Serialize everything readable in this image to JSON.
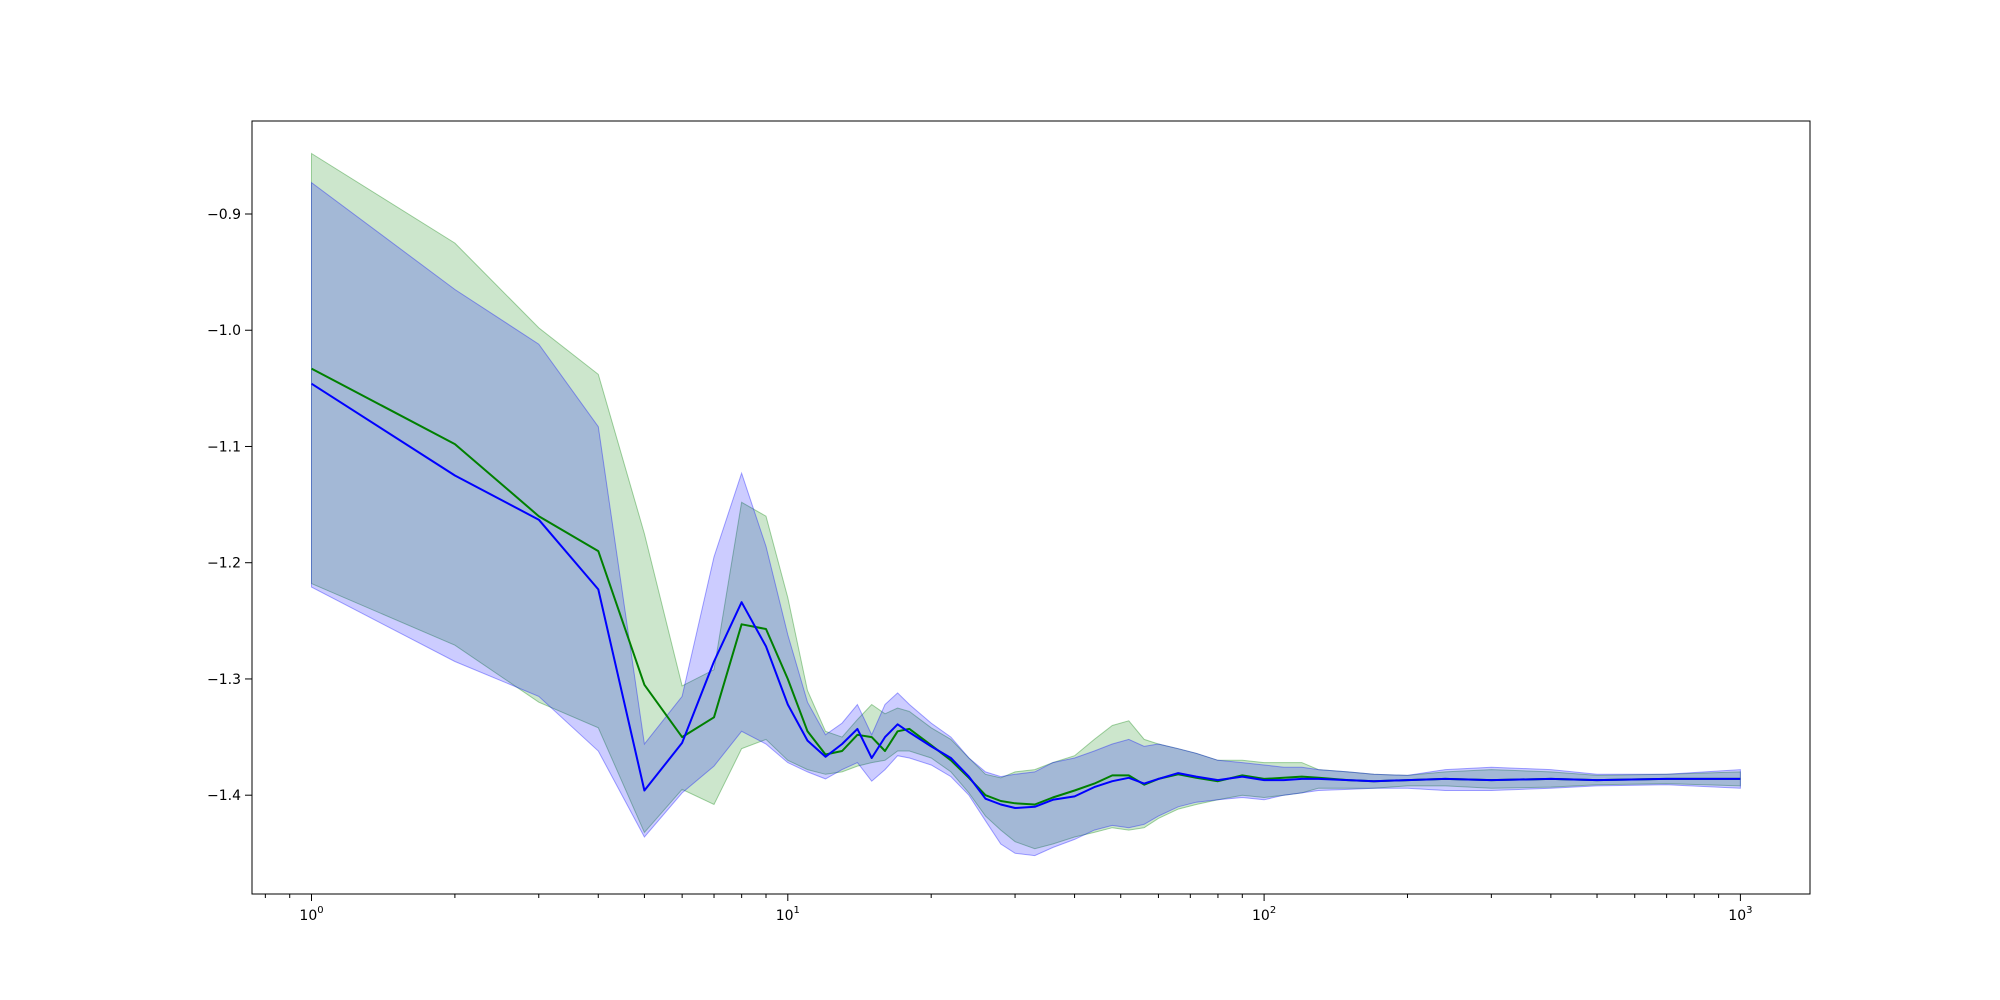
{
  "chart_data": {
    "type": "line",
    "title": "",
    "xlabel": "",
    "ylabel": "",
    "x_scale": "log",
    "xlim": [
      0.75,
      1400
    ],
    "ylim": [
      -1.485,
      -0.82
    ],
    "grid": false,
    "legend": "none",
    "x_ticks": [
      {
        "value": 1,
        "base": "10",
        "exp": "0"
      },
      {
        "value": 10,
        "base": "10",
        "exp": "1"
      },
      {
        "value": 100,
        "base": "10",
        "exp": "2"
      },
      {
        "value": 1000,
        "base": "10",
        "exp": "3"
      }
    ],
    "y_ticks": [
      {
        "value": -0.9,
        "label": "−0.9"
      },
      {
        "value": -1.0,
        "label": "−1.0"
      },
      {
        "value": -1.1,
        "label": "−1.1"
      },
      {
        "value": -1.2,
        "label": "−1.2"
      },
      {
        "value": -1.3,
        "label": "−1.3"
      },
      {
        "value": -1.4,
        "label": "−1.4"
      }
    ],
    "series": [
      {
        "color": "#008000",
        "band_color": "#008000",
        "band_opacity": 0.2,
        "x": [
          1,
          2,
          3,
          4,
          5,
          6,
          7,
          8,
          9,
          10,
          11,
          12,
          13,
          14,
          15,
          16,
          17,
          18,
          20,
          22,
          24,
          26,
          28,
          30,
          33,
          36,
          40,
          44,
          48,
          52,
          56,
          60,
          66,
          72,
          80,
          90,
          100,
          110,
          120,
          130,
          150,
          170,
          200,
          240,
          300,
          400,
          500,
          700,
          1000
        ],
        "mean": [
          -1.033,
          -1.098,
          -1.16,
          -1.19,
          -1.305,
          -1.35,
          -1.333,
          -1.253,
          -1.257,
          -1.3,
          -1.345,
          -1.365,
          -1.362,
          -1.348,
          -1.35,
          -1.362,
          -1.345,
          -1.343,
          -1.357,
          -1.37,
          -1.385,
          -1.4,
          -1.405,
          -1.407,
          -1.408,
          -1.402,
          -1.396,
          -1.39,
          -1.383,
          -1.383,
          -1.391,
          -1.386,
          -1.382,
          -1.385,
          -1.388,
          -1.383,
          -1.386,
          -1.385,
          -1.384,
          -1.385,
          -1.387,
          -1.388,
          -1.387,
          -1.386,
          -1.387,
          -1.386,
          -1.387,
          -1.386,
          -1.386
        ],
        "upper": [
          -0.848,
          -0.925,
          -0.998,
          -1.038,
          -1.175,
          -1.306,
          -1.292,
          -1.148,
          -1.16,
          -1.23,
          -1.31,
          -1.345,
          -1.35,
          -1.335,
          -1.322,
          -1.33,
          -1.325,
          -1.328,
          -1.342,
          -1.352,
          -1.368,
          -1.382,
          -1.385,
          -1.38,
          -1.378,
          -1.372,
          -1.366,
          -1.352,
          -1.34,
          -1.336,
          -1.352,
          -1.356,
          -1.36,
          -1.364,
          -1.37,
          -1.37,
          -1.372,
          -1.372,
          -1.372,
          -1.378,
          -1.38,
          -1.382,
          -1.383,
          -1.38,
          -1.378,
          -1.38,
          -1.383,
          -1.382,
          -1.38
        ],
        "lower": [
          -1.218,
          -1.271,
          -1.32,
          -1.342,
          -1.432,
          -1.395,
          -1.408,
          -1.36,
          -1.352,
          -1.37,
          -1.378,
          -1.382,
          -1.38,
          -1.375,
          -1.372,
          -1.37,
          -1.362,
          -1.362,
          -1.368,
          -1.38,
          -1.398,
          -1.418,
          -1.43,
          -1.44,
          -1.446,
          -1.442,
          -1.436,
          -1.432,
          -1.428,
          -1.43,
          -1.428,
          -1.42,
          -1.412,
          -1.408,
          -1.404,
          -1.4,
          -1.402,
          -1.4,
          -1.398,
          -1.394,
          -1.394,
          -1.394,
          -1.392,
          -1.392,
          -1.394,
          -1.393,
          -1.391,
          -1.39,
          -1.392
        ]
      },
      {
        "color": "#0000ff",
        "band_color": "#0000ff",
        "band_opacity": 0.2,
        "x": [
          1,
          2,
          3,
          4,
          5,
          6,
          7,
          8,
          9,
          10,
          11,
          12,
          13,
          14,
          15,
          16,
          17,
          18,
          20,
          22,
          24,
          26,
          28,
          30,
          33,
          36,
          40,
          44,
          48,
          52,
          56,
          60,
          66,
          72,
          80,
          90,
          100,
          110,
          120,
          130,
          150,
          170,
          200,
          240,
          300,
          400,
          500,
          700,
          1000
        ],
        "mean": [
          -1.046,
          -1.125,
          -1.163,
          -1.223,
          -1.396,
          -1.355,
          -1.285,
          -1.234,
          -1.272,
          -1.322,
          -1.353,
          -1.367,
          -1.356,
          -1.343,
          -1.368,
          -1.35,
          -1.339,
          -1.346,
          -1.358,
          -1.368,
          -1.384,
          -1.403,
          -1.408,
          -1.411,
          -1.41,
          -1.404,
          -1.401,
          -1.393,
          -1.388,
          -1.385,
          -1.39,
          -1.386,
          -1.381,
          -1.384,
          -1.387,
          -1.384,
          -1.387,
          -1.387,
          -1.386,
          -1.386,
          -1.387,
          -1.388,
          -1.387,
          -1.386,
          -1.387,
          -1.386,
          -1.387,
          -1.386,
          -1.386
        ],
        "upper": [
          -0.873,
          -0.965,
          -1.012,
          -1.083,
          -1.356,
          -1.315,
          -1.195,
          -1.123,
          -1.186,
          -1.262,
          -1.32,
          -1.348,
          -1.338,
          -1.322,
          -1.348,
          -1.322,
          -1.312,
          -1.322,
          -1.338,
          -1.35,
          -1.368,
          -1.38,
          -1.384,
          -1.382,
          -1.38,
          -1.372,
          -1.368,
          -1.362,
          -1.356,
          -1.352,
          -1.358,
          -1.356,
          -1.36,
          -1.364,
          -1.37,
          -1.372,
          -1.374,
          -1.376,
          -1.376,
          -1.378,
          -1.38,
          -1.382,
          -1.383,
          -1.378,
          -1.376,
          -1.378,
          -1.382,
          -1.382,
          -1.378
        ],
        "lower": [
          -1.221,
          -1.285,
          -1.315,
          -1.362,
          -1.436,
          -1.398,
          -1.375,
          -1.345,
          -1.356,
          -1.372,
          -1.38,
          -1.386,
          -1.378,
          -1.372,
          -1.388,
          -1.378,
          -1.366,
          -1.368,
          -1.374,
          -1.384,
          -1.4,
          -1.422,
          -1.442,
          -1.45,
          -1.452,
          -1.445,
          -1.438,
          -1.43,
          -1.426,
          -1.428,
          -1.425,
          -1.418,
          -1.41,
          -1.406,
          -1.404,
          -1.402,
          -1.404,
          -1.4,
          -1.398,
          -1.396,
          -1.395,
          -1.394,
          -1.394,
          -1.396,
          -1.396,
          -1.394,
          -1.392,
          -1.391,
          -1.394
        ]
      }
    ]
  }
}
